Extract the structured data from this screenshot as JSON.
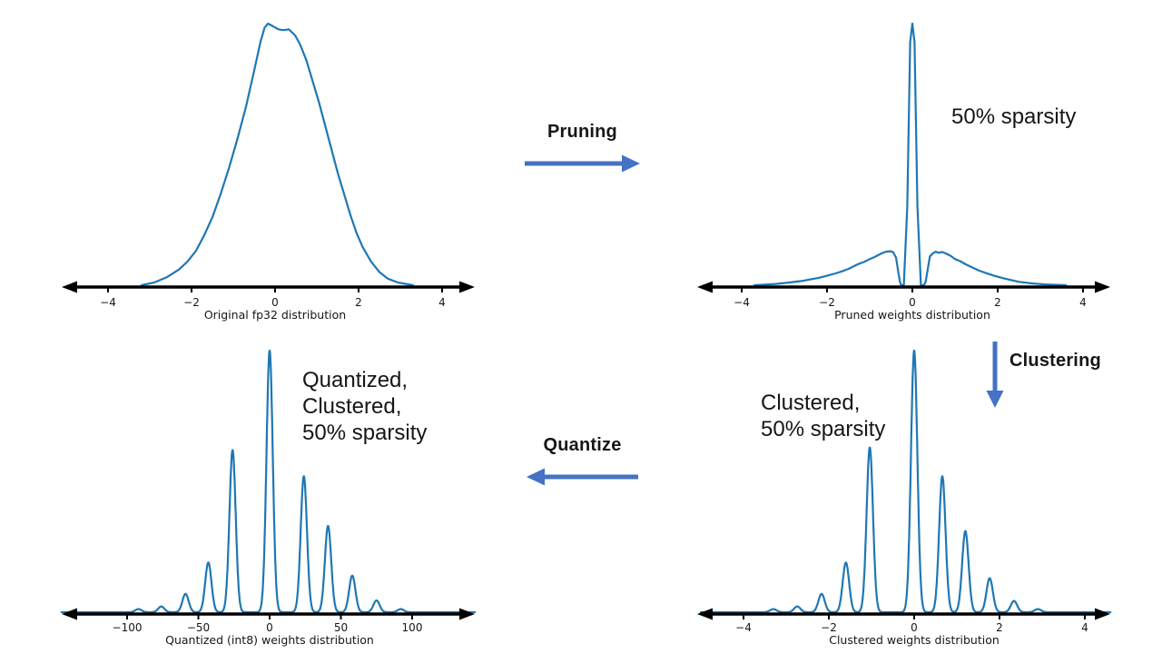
{
  "page": {
    "background": "#ffffff"
  },
  "colors": {
    "curve": "#1f77b4",
    "axis": "#000000",
    "arrow": "#4472c4",
    "text": "#161616"
  },
  "flow": {
    "pruning_label": "Pruning",
    "clustering_label": "Clustering",
    "quantize_label": "Quantize"
  },
  "annotations": {
    "pruned_sparsity": "50% sparsity",
    "clustered_note": "Clustered,\n50% sparsity",
    "quantized_note": "Quantized,\nClustered,\n50% sparsity"
  },
  "chart_data": [
    {
      "id": "original-fp32",
      "position": "top-left",
      "type": "line",
      "title": "Original fp32 distribution",
      "xticks": [
        -4,
        -2,
        0,
        2,
        4
      ],
      "xlim": [
        -5.1,
        4.8
      ],
      "ylim": [
        0,
        1
      ],
      "grid": false,
      "legend": null,
      "points": [
        [
          -3.2,
          0
        ],
        [
          -2.9,
          0.01
        ],
        [
          -2.6,
          0.03
        ],
        [
          -2.3,
          0.06
        ],
        [
          -2.1,
          0.09
        ],
        [
          -1.9,
          0.13
        ],
        [
          -1.7,
          0.19
        ],
        [
          -1.5,
          0.26
        ],
        [
          -1.3,
          0.35
        ],
        [
          -1.1,
          0.45
        ],
        [
          -0.9,
          0.56
        ],
        [
          -0.7,
          0.68
        ],
        [
          -0.5,
          0.82
        ],
        [
          -0.35,
          0.93
        ],
        [
          -0.25,
          0.985
        ],
        [
          -0.17,
          1.0
        ],
        [
          -0.05,
          0.99
        ],
        [
          0.08,
          0.978
        ],
        [
          0.2,
          0.975
        ],
        [
          0.33,
          0.978
        ],
        [
          0.48,
          0.955
        ],
        [
          0.6,
          0.92
        ],
        [
          0.75,
          0.86
        ],
        [
          0.9,
          0.78
        ],
        [
          1.05,
          0.7
        ],
        [
          1.2,
          0.61
        ],
        [
          1.35,
          0.52
        ],
        [
          1.5,
          0.43
        ],
        [
          1.65,
          0.35
        ],
        [
          1.8,
          0.27
        ],
        [
          1.95,
          0.2
        ],
        [
          2.1,
          0.145
        ],
        [
          2.3,
          0.09
        ],
        [
          2.5,
          0.05
        ],
        [
          2.7,
          0.025
        ],
        [
          2.95,
          0.01
        ],
        [
          3.3,
          0
        ]
      ]
    },
    {
      "id": "pruned-weights",
      "position": "top-right",
      "type": "line",
      "title": "Pruned weights distribution",
      "xticks": [
        -4,
        -2,
        0,
        2,
        4
      ],
      "xlim": [
        -5.05,
        4.65
      ],
      "ylim": [
        0,
        1
      ],
      "grid": false,
      "legend": null,
      "points": [
        [
          -3.7,
          0
        ],
        [
          -3.2,
          0.005
        ],
        [
          -2.9,
          0.01
        ],
        [
          -2.6,
          0.016
        ],
        [
          -2.4,
          0.022
        ],
        [
          -2.2,
          0.028
        ],
        [
          -2.0,
          0.036
        ],
        [
          -1.8,
          0.045
        ],
        [
          -1.65,
          0.053
        ],
        [
          -1.5,
          0.062
        ],
        [
          -1.38,
          0.072
        ],
        [
          -1.25,
          0.082
        ],
        [
          -1.12,
          0.09
        ],
        [
          -1.0,
          0.1
        ],
        [
          -0.9,
          0.107
        ],
        [
          -0.8,
          0.115
        ],
        [
          -0.72,
          0.122
        ],
        [
          -0.62,
          0.128
        ],
        [
          -0.52,
          0.13
        ],
        [
          -0.45,
          0.126
        ],
        [
          -0.38,
          0.105
        ],
        [
          -0.33,
          0.05
        ],
        [
          -0.29,
          0.012
        ],
        [
          -0.26,
          0
        ],
        [
          -0.2,
          0
        ],
        [
          -0.12,
          0.3
        ],
        [
          -0.05,
          0.93
        ],
        [
          0,
          1.0
        ],
        [
          0.05,
          0.93
        ],
        [
          0.12,
          0.3
        ],
        [
          0.2,
          0
        ],
        [
          0.27,
          0
        ],
        [
          0.31,
          0.012
        ],
        [
          0.36,
          0.06
        ],
        [
          0.41,
          0.11
        ],
        [
          0.48,
          0.122
        ],
        [
          0.55,
          0.128
        ],
        [
          0.62,
          0.124
        ],
        [
          0.7,
          0.127
        ],
        [
          0.8,
          0.12
        ],
        [
          0.9,
          0.112
        ],
        [
          1.0,
          0.1
        ],
        [
          1.12,
          0.092
        ],
        [
          1.25,
          0.08
        ],
        [
          1.4,
          0.068
        ],
        [
          1.55,
          0.057
        ],
        [
          1.7,
          0.048
        ],
        [
          1.9,
          0.037
        ],
        [
          2.1,
          0.028
        ],
        [
          2.3,
          0.02
        ],
        [
          2.5,
          0.013
        ],
        [
          2.8,
          0.007
        ],
        [
          3.1,
          0.003
        ],
        [
          3.6,
          0
        ]
      ]
    },
    {
      "id": "quantized-int8-weights",
      "position": "bottom-left",
      "type": "line",
      "title": "Quantized (int8) weights distribution",
      "xticks": [
        -100,
        -50,
        0,
        50,
        100
      ],
      "xlim": [
        -146,
        144
      ],
      "ylim": [
        0,
        1
      ],
      "grid": false,
      "legend": null,
      "spikes": {
        "centers": [
          -92,
          -76,
          -59,
          -43,
          -26,
          0,
          24,
          41,
          58,
          75,
          92
        ],
        "heights": [
          0.012,
          0.022,
          0.07,
          0.19,
          0.62,
          1.0,
          0.52,
          0.33,
          0.14,
          0.045,
          0.012
        ],
        "sigma": 2.2
      }
    },
    {
      "id": "clustered-weights",
      "position": "bottom-right",
      "type": "line",
      "title": "Clustered weights distribution",
      "xticks": [
        -4,
        -2,
        0,
        2,
        4
      ],
      "xlim": [
        -5.0,
        4.6
      ],
      "ylim": [
        0,
        1
      ],
      "grid": false,
      "legend": null,
      "spikes": {
        "centers": [
          -3.3,
          -2.74,
          -2.17,
          -1.6,
          -1.04,
          0,
          0.66,
          1.2,
          1.77,
          2.34,
          2.9
        ],
        "heights": [
          0.012,
          0.022,
          0.07,
          0.19,
          0.63,
          1.0,
          0.52,
          0.31,
          0.13,
          0.043,
          0.012
        ],
        "sigma": 0.075
      }
    }
  ]
}
